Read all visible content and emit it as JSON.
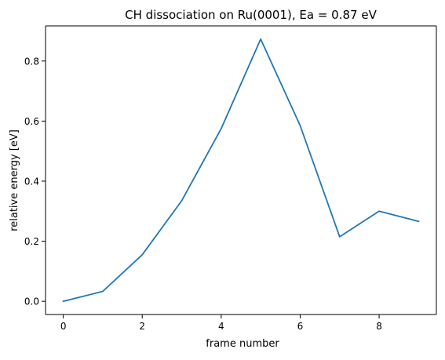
{
  "chart_data": {
    "type": "line",
    "title": "CH dissociation on Ru(0001), Ea = 0.87 eV",
    "xlabel": "frame number",
    "ylabel": "relative energy [eV]",
    "x": [
      0,
      1,
      2,
      3,
      4,
      5,
      6,
      7,
      8,
      9
    ],
    "series": [
      {
        "values": [
          0.0,
          0.033,
          0.155,
          0.335,
          0.575,
          0.873,
          0.585,
          0.215,
          0.3,
          0.266
        ],
        "color": "#1f77b4"
      }
    ],
    "xlim": [
      -0.45,
      9.45
    ],
    "ylim": [
      -0.044,
      0.917
    ],
    "xticks": [
      0,
      2,
      4,
      6,
      8
    ],
    "xtick_labels": [
      "0",
      "2",
      "4",
      "6",
      "8"
    ],
    "yticks": [
      0.0,
      0.2,
      0.4,
      0.6,
      0.8
    ],
    "ytick_labels": [
      "0.0",
      "0.2",
      "0.4",
      "0.6",
      "0.8"
    ],
    "grid": false,
    "legend": false
  }
}
